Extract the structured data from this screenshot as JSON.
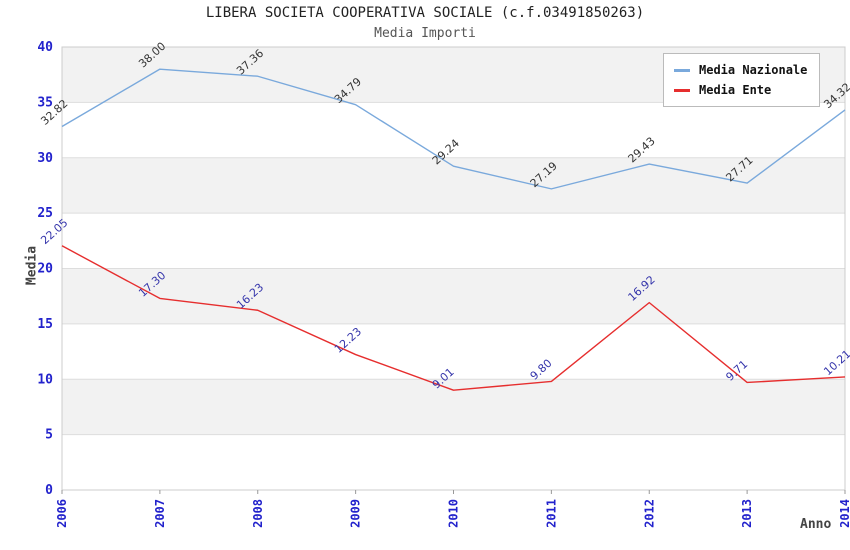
{
  "chart_data": {
    "type": "line",
    "title": "LIBERA SOCIETA COOPERATIVA SOCIALE (c.f.03491850263)",
    "subtitle": "Media Importi",
    "xlabel": "Anno",
    "ylabel": "Media",
    "ylim": [
      0,
      40
    ],
    "ytick_step": 5,
    "yticks": [
      0,
      5,
      10,
      15,
      20,
      25,
      30,
      35,
      40
    ],
    "categories": [
      "2006",
      "2007",
      "2008",
      "2009",
      "2010",
      "2011",
      "2012",
      "2013",
      "2014"
    ],
    "legend_position": "top-right",
    "grid": "horizontal-bands",
    "series": [
      {
        "name": "Media Nazionale",
        "color": "#7AA9DC",
        "label_color": "#333333",
        "values": [
          32.82,
          38.0,
          37.36,
          34.79,
          29.24,
          27.19,
          29.43,
          27.71,
          34.32
        ]
      },
      {
        "name": "Media Ente",
        "color": "#E62E2E",
        "label_color": "#3333AA",
        "values": [
          22.05,
          17.3,
          16.23,
          12.23,
          9.01,
          9.8,
          16.92,
          9.71,
          10.21
        ]
      }
    ],
    "colors": {
      "tick_label": "#2222CC",
      "band": "#F2F2F2",
      "grid": "#DDDDDD",
      "plot_border": "#CCCCCC",
      "plot_background": "#FFFFFF",
      "title": "#222222",
      "subtitle": "#555555",
      "axis_title": "#444444"
    }
  }
}
